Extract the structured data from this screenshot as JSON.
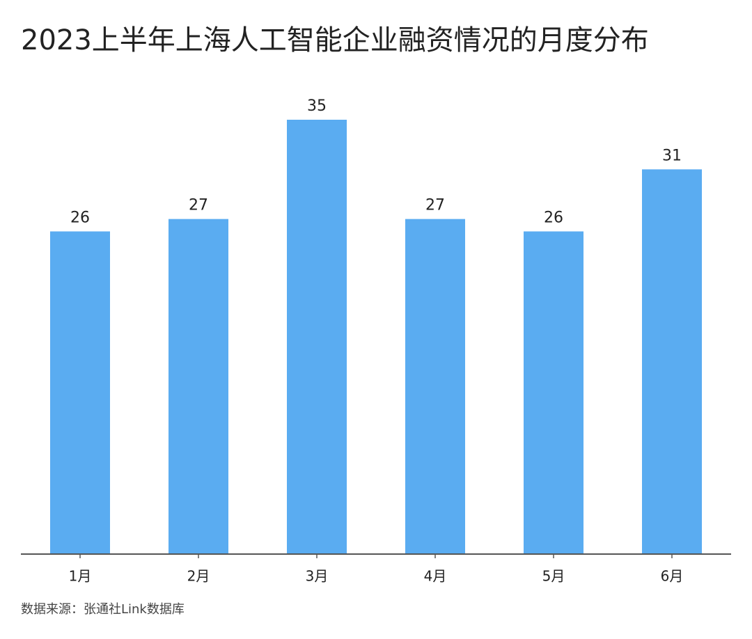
{
  "chart_data": {
    "type": "bar",
    "title": "2023上半年上海人工智能企业融资情况的月度分布",
    "categories": [
      "1月",
      "2月",
      "3月",
      "4月",
      "5月",
      "6月"
    ],
    "values": [
      26,
      27,
      35,
      27,
      26,
      31
    ],
    "color": "#5aacf1",
    "source": "数据来源：张通社Link数据库"
  }
}
